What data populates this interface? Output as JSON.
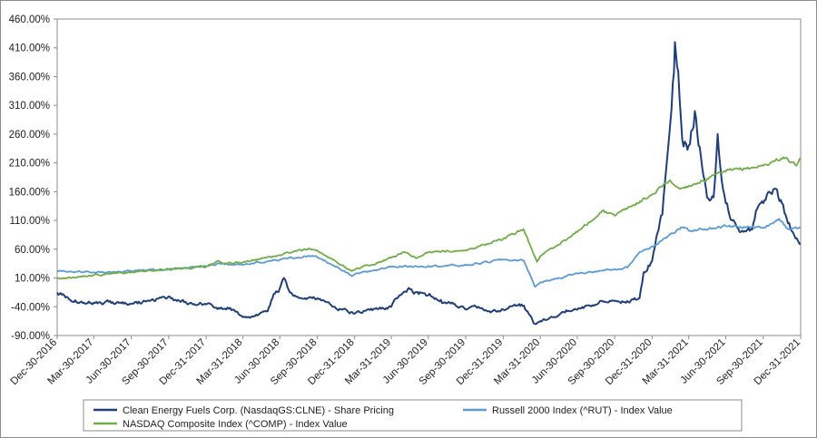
{
  "chart_data": {
    "type": "line",
    "title": "",
    "xlabel": "",
    "ylabel": "",
    "ylim": [
      -90,
      460
    ],
    "yticks": [
      -90,
      -40,
      10,
      60,
      110,
      160,
      210,
      260,
      310,
      360,
      410,
      460
    ],
    "ytick_labels": [
      "-90.00%",
      "-40.00%",
      "10.00%",
      "60.00%",
      "110.00%",
      "160.00%",
      "210.00%",
      "260.00%",
      "310.00%",
      "360.00%",
      "410.00%",
      "460.00%"
    ],
    "xlim": [
      "2016-12-30",
      "2021-12-31"
    ],
    "x_tick_dates": [
      "2016-12-30",
      "2017-03-30",
      "2017-06-30",
      "2017-09-30",
      "2017-12-31",
      "2018-03-31",
      "2018-06-30",
      "2018-09-30",
      "2018-12-31",
      "2019-03-31",
      "2019-06-30",
      "2019-09-30",
      "2019-12-31",
      "2020-03-31",
      "2020-06-30",
      "2020-09-30",
      "2020-12-31",
      "2021-03-31",
      "2021-06-30",
      "2021-09-30",
      "2021-12-31"
    ],
    "x_tick_labels": [
      "Dec-30-2016",
      "Mar-30-2017",
      "Jun-30-2017",
      "Sep-30-2017",
      "Dec-31-2017",
      "Mar-31-2018",
      "Jun-30-2018",
      "Sep-30-2018",
      "Dec-31-2018",
      "Mar-31-2019",
      "Jun-30-2019",
      "Sep-30-2019",
      "Dec-31-2019",
      "Mar-31-2020",
      "Jun-30-2020",
      "Sep-30-2020",
      "Dec-31-2020",
      "Mar-31-2021",
      "Jun-30-2021",
      "Sep-30-2021",
      "Dec-31-2021"
    ],
    "grid": false,
    "legend_position": "bottom",
    "series": [
      {
        "name": "Clean Energy Fuels Corp. (NasdaqGS:CLNE) - Share Pricing",
        "color": "#1f3f7a",
        "points": [
          [
            "2016-12-30",
            -15
          ],
          [
            "2017-01-31",
            -28
          ],
          [
            "2017-03-30",
            -33
          ],
          [
            "2017-05-15",
            -32
          ],
          [
            "2017-06-30",
            -35
          ],
          [
            "2017-08-15",
            -30
          ],
          [
            "2017-09-30",
            -22
          ],
          [
            "2017-10-20",
            -30
          ],
          [
            "2017-12-31",
            -36
          ],
          [
            "2018-01-31",
            -42
          ],
          [
            "2018-02-28",
            -42
          ],
          [
            "2018-03-31",
            -58
          ],
          [
            "2018-04-30",
            -56
          ],
          [
            "2018-05-31",
            -48
          ],
          [
            "2018-06-15",
            -18
          ],
          [
            "2018-06-30",
            -8
          ],
          [
            "2018-07-10",
            10
          ],
          [
            "2018-07-25",
            -15
          ],
          [
            "2018-08-31",
            -25
          ],
          [
            "2018-09-30",
            -25
          ],
          [
            "2018-10-31",
            -35
          ],
          [
            "2018-11-30",
            -45
          ],
          [
            "2018-12-31",
            -52
          ],
          [
            "2019-01-31",
            -45
          ],
          [
            "2019-02-28",
            -44
          ],
          [
            "2019-03-31",
            -40
          ],
          [
            "2019-04-20",
            -20
          ],
          [
            "2019-05-10",
            -10
          ],
          [
            "2019-06-01",
            -15
          ],
          [
            "2019-06-30",
            -20
          ],
          [
            "2019-07-31",
            -28
          ],
          [
            "2019-08-31",
            -35
          ],
          [
            "2019-09-30",
            -45
          ],
          [
            "2019-10-31",
            -40
          ],
          [
            "2019-11-30",
            -50
          ],
          [
            "2019-12-31",
            -45
          ],
          [
            "2020-01-31",
            -38
          ],
          [
            "2020-02-20",
            -38
          ],
          [
            "2020-03-18",
            -70
          ],
          [
            "2020-03-31",
            -65
          ],
          [
            "2020-04-30",
            -58
          ],
          [
            "2020-05-31",
            -50
          ],
          [
            "2020-06-30",
            -45
          ],
          [
            "2020-07-31",
            -38
          ],
          [
            "2020-08-31",
            -30
          ],
          [
            "2020-09-30",
            -30
          ],
          [
            "2020-10-31",
            -30
          ],
          [
            "2020-11-30",
            -25
          ],
          [
            "2020-12-10",
            20
          ],
          [
            "2020-12-31",
            40
          ],
          [
            "2021-01-10",
            80
          ],
          [
            "2021-01-25",
            120
          ],
          [
            "2021-02-01",
            180
          ],
          [
            "2021-02-10",
            250
          ],
          [
            "2021-02-20",
            350
          ],
          [
            "2021-02-25",
            420
          ],
          [
            "2021-03-05",
            370
          ],
          [
            "2021-03-15",
            250
          ],
          [
            "2021-03-31",
            240
          ],
          [
            "2021-04-15",
            300
          ],
          [
            "2021-04-30",
            220
          ],
          [
            "2021-05-15",
            150
          ],
          [
            "2021-05-31",
            150
          ],
          [
            "2021-06-10",
            260
          ],
          [
            "2021-06-20",
            180
          ],
          [
            "2021-06-30",
            140
          ],
          [
            "2021-07-15",
            110
          ],
          [
            "2021-07-31",
            95
          ],
          [
            "2021-08-31",
            95
          ],
          [
            "2021-09-15",
            130
          ],
          [
            "2021-09-30",
            140
          ],
          [
            "2021-10-15",
            160
          ],
          [
            "2021-10-31",
            165
          ],
          [
            "2021-11-15",
            140
          ],
          [
            "2021-11-30",
            105
          ],
          [
            "2021-12-15",
            85
          ],
          [
            "2021-12-31",
            70
          ]
        ]
      },
      {
        "name": "Russell 2000 Index (^RUT) - Index Value",
        "color": "#5b9bd5",
        "points": [
          [
            "2016-12-30",
            22
          ],
          [
            "2017-03-30",
            20
          ],
          [
            "2017-06-30",
            22
          ],
          [
            "2017-09-30",
            25
          ],
          [
            "2017-12-31",
            30
          ],
          [
            "2018-01-31",
            35
          ],
          [
            "2018-03-31",
            33
          ],
          [
            "2018-06-30",
            42
          ],
          [
            "2018-08-31",
            48
          ],
          [
            "2018-09-30",
            46
          ],
          [
            "2018-10-31",
            35
          ],
          [
            "2018-12-24",
            13
          ],
          [
            "2018-12-31",
            16
          ],
          [
            "2019-03-31",
            30
          ],
          [
            "2019-06-30",
            31
          ],
          [
            "2019-09-30",
            32
          ],
          [
            "2019-12-31",
            42
          ],
          [
            "2020-02-20",
            40
          ],
          [
            "2020-03-18",
            -5
          ],
          [
            "2020-03-31",
            2
          ],
          [
            "2020-06-30",
            18
          ],
          [
            "2020-09-30",
            25
          ],
          [
            "2020-10-31",
            28
          ],
          [
            "2020-11-30",
            55
          ],
          [
            "2020-12-31",
            65
          ],
          [
            "2021-03-15",
            98
          ],
          [
            "2021-03-31",
            92
          ],
          [
            "2021-06-30",
            100
          ],
          [
            "2021-09-30",
            97
          ],
          [
            "2021-11-08",
            113
          ],
          [
            "2021-12-01",
            95
          ],
          [
            "2021-12-31",
            98
          ]
        ]
      },
      {
        "name": "NASDAQ Composite Index (^COMP) - Index Value",
        "color": "#70ad47",
        "points": [
          [
            "2016-12-30",
            9
          ],
          [
            "2017-03-30",
            15
          ],
          [
            "2017-06-30",
            20
          ],
          [
            "2017-09-30",
            25
          ],
          [
            "2017-12-31",
            30
          ],
          [
            "2018-01-31",
            40
          ],
          [
            "2018-02-10",
            35
          ],
          [
            "2018-03-31",
            37
          ],
          [
            "2018-06-30",
            50
          ],
          [
            "2018-08-31",
            60
          ],
          [
            "2018-09-30",
            58
          ],
          [
            "2018-10-31",
            45
          ],
          [
            "2018-12-24",
            22
          ],
          [
            "2018-12-31",
            24
          ],
          [
            "2019-03-31",
            45
          ],
          [
            "2019-04-30",
            55
          ],
          [
            "2019-06-03",
            45
          ],
          [
            "2019-06-30",
            55
          ],
          [
            "2019-09-30",
            58
          ],
          [
            "2019-12-31",
            78
          ],
          [
            "2020-02-19",
            95
          ],
          [
            "2020-03-23",
            38
          ],
          [
            "2020-03-31",
            48
          ],
          [
            "2020-06-30",
            90
          ],
          [
            "2020-09-02",
            128
          ],
          [
            "2020-09-30",
            118
          ],
          [
            "2020-12-31",
            155
          ],
          [
            "2021-02-12",
            180
          ],
          [
            "2021-03-08",
            165
          ],
          [
            "2021-03-31",
            170
          ],
          [
            "2021-06-30",
            195
          ],
          [
            "2021-09-30",
            205
          ],
          [
            "2021-11-19",
            220
          ],
          [
            "2021-12-20",
            205
          ],
          [
            "2021-12-31",
            218
          ]
        ]
      }
    ]
  }
}
